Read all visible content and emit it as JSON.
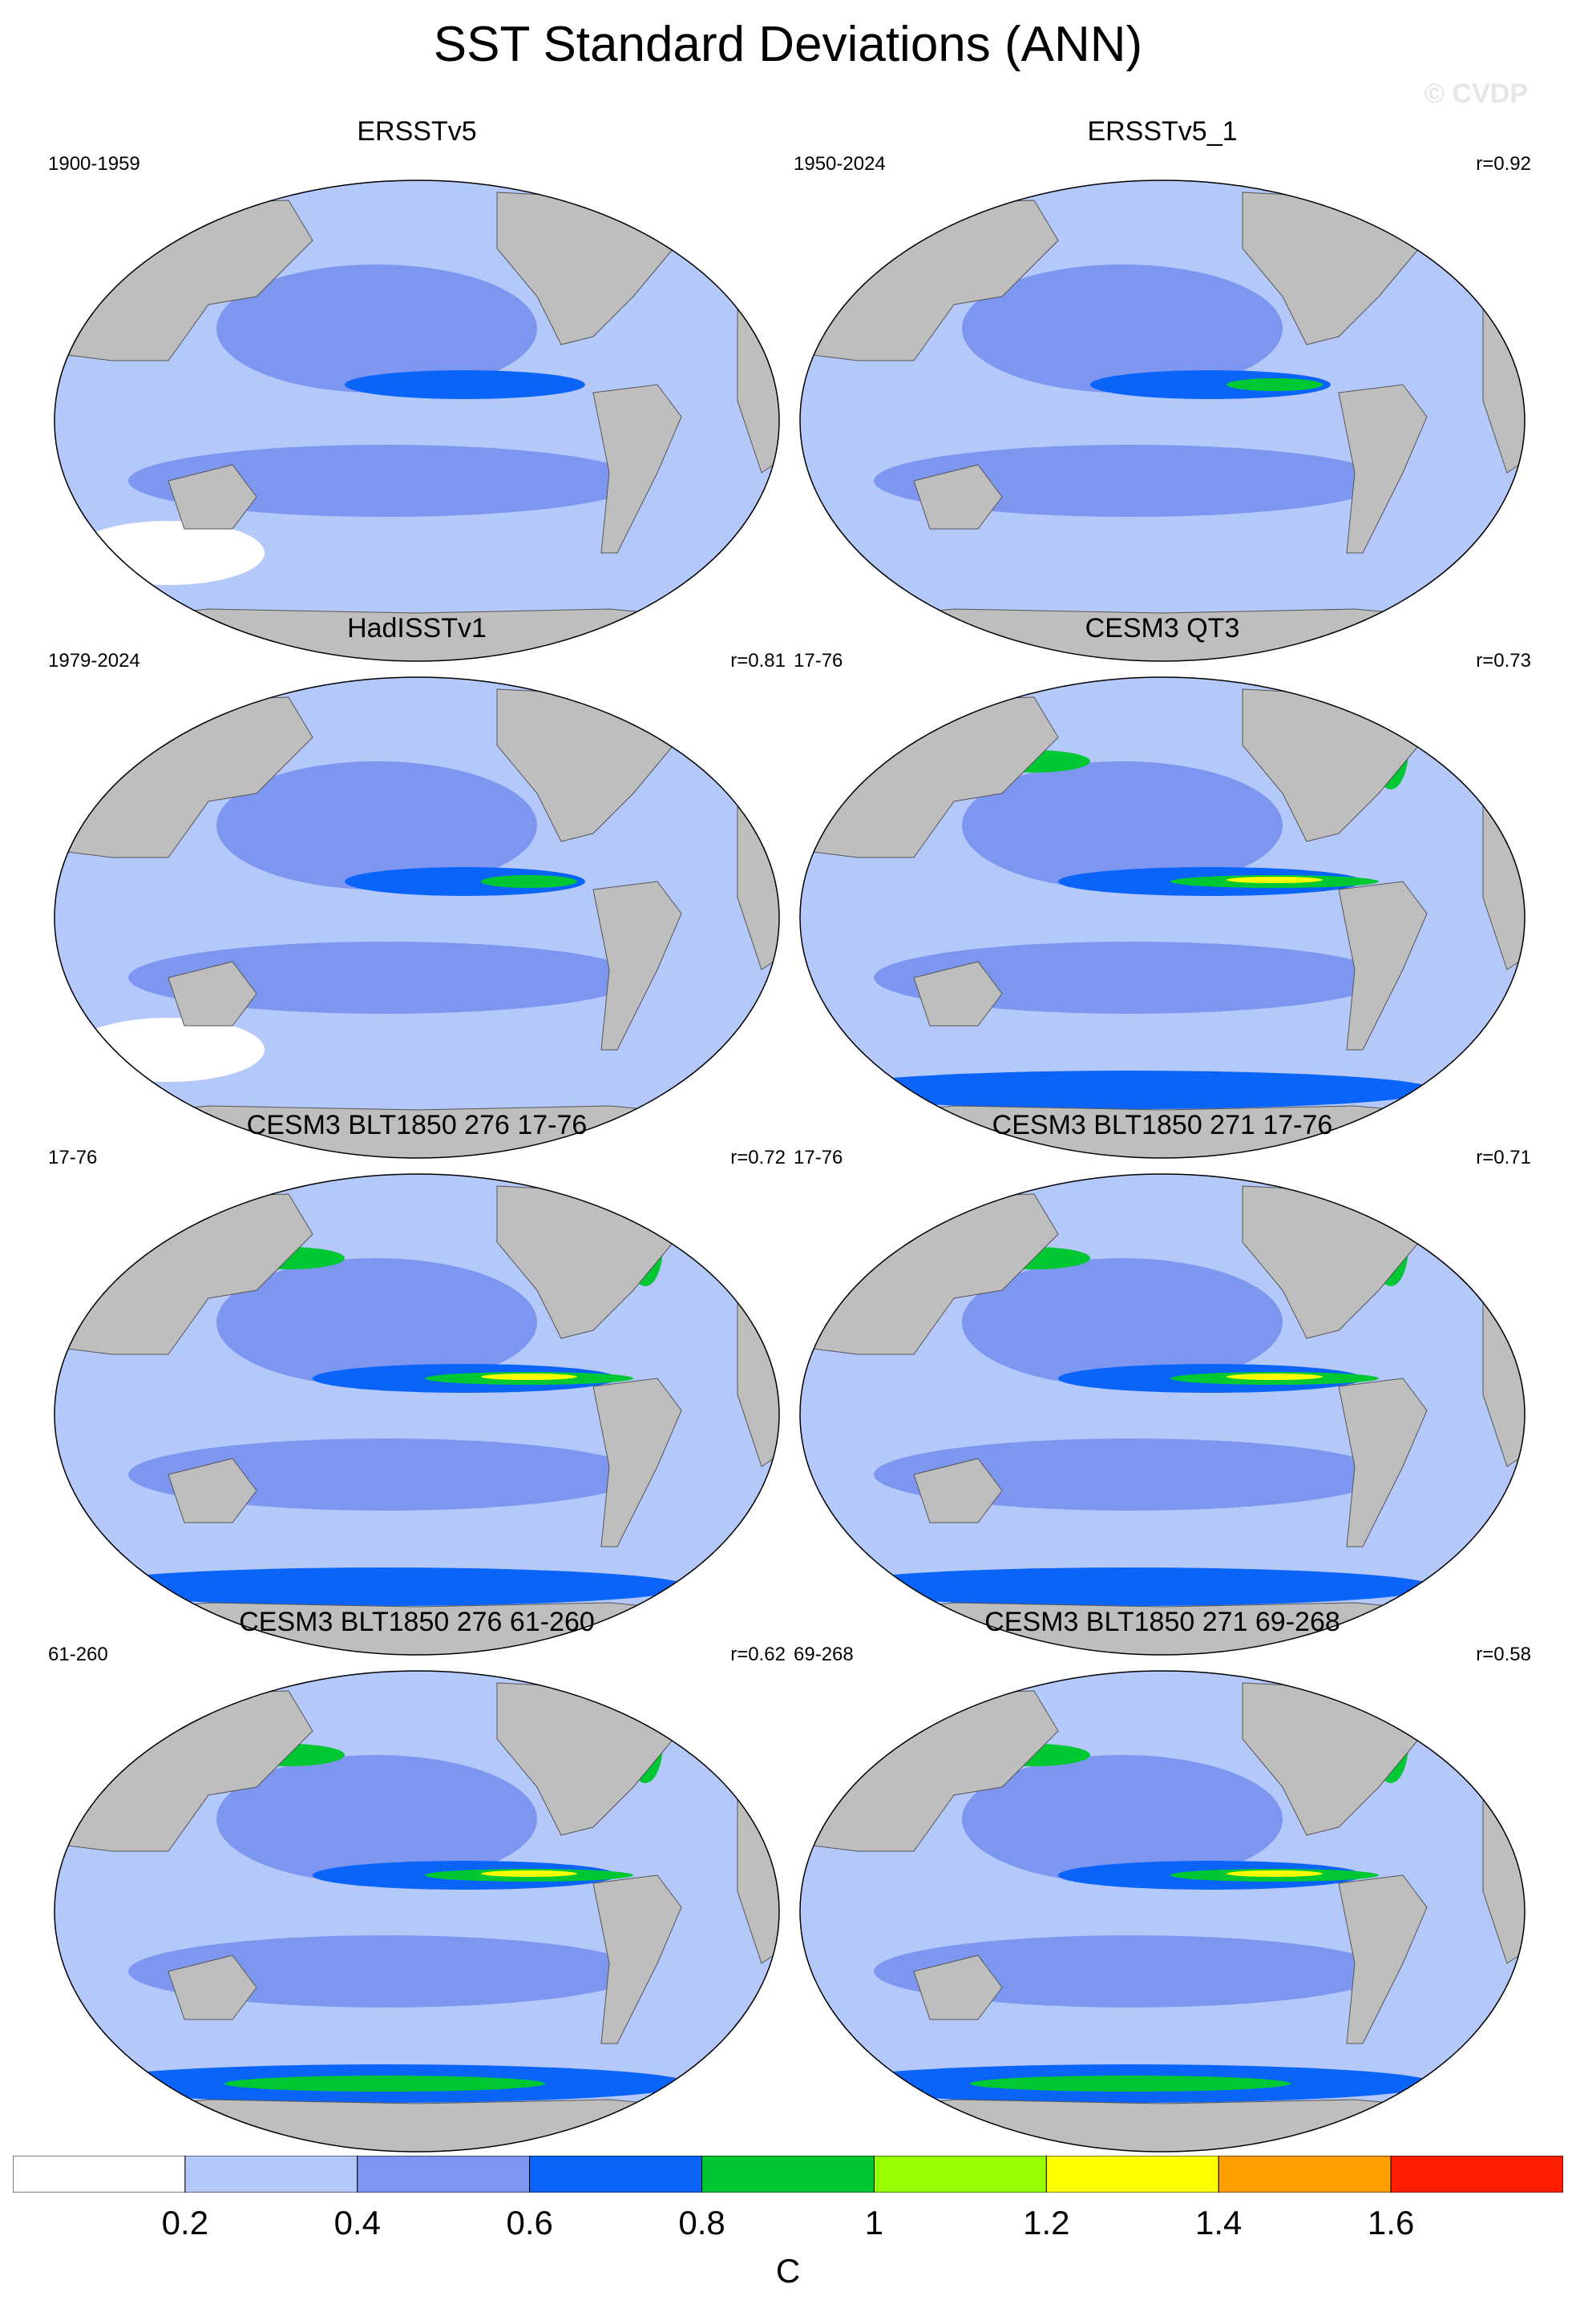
{
  "title": "SST Standard Deviations (ANN)",
  "watermark": "© CVDP",
  "panels": [
    {
      "title": "ERSSTv5",
      "left": "1900-1959",
      "right": ""
    },
    {
      "title": "ERSSTv5_1",
      "left": "1950-2024",
      "right": "r=0.92"
    },
    {
      "title": "HadISSTv1",
      "left": "1979-2024",
      "right": "r=0.81"
    },
    {
      "title": "CESM3 QT3",
      "left": "17-76",
      "right": "r=0.73"
    },
    {
      "title": "CESM3 BLT1850 276 17-76",
      "left": "17-76",
      "right": "r=0.72"
    },
    {
      "title": "CESM3 BLT1850 271 17-76",
      "left": "17-76",
      "right": "r=0.71"
    },
    {
      "title": "CESM3 BLT1850 276 61-260",
      "left": "61-260",
      "right": "r=0.62"
    },
    {
      "title": "CESM3 BLT1850 271 69-268",
      "left": "69-268",
      "right": "r=0.58"
    }
  ],
  "colorbar": {
    "unit": "C",
    "labels": [
      "0.2",
      "0.4",
      "0.6",
      "0.8",
      "1",
      "1.2",
      "1.4",
      "1.6"
    ],
    "colors": [
      "#ffffff",
      "#b4c8fa",
      "#7d96f0",
      "#0a64fa",
      "#00c832",
      "#96ff00",
      "#ffff00",
      "#ffa000",
      "#ff1e00"
    ]
  },
  "map_colors": {
    "land": "#bebebe",
    "ocean_low": "#b4c8fa",
    "ocean_mid": "#7d96f0",
    "ocean_high": "#0a64fa",
    "green": "#00c832",
    "yellow": "#ffff00",
    "orange": "#ffa000",
    "red": "#ff1e00",
    "white": "#ffffff"
  },
  "chart_data": {
    "type": "heatmap",
    "title": "SST Standard Deviations (ANN)",
    "levels": [
      0.2,
      0.4,
      0.6,
      0.8,
      1,
      1.2,
      1.4,
      1.6
    ],
    "unit": "C",
    "panels": [
      "ERSSTv5",
      "ERSSTv5_1",
      "HadISSTv1",
      "CESM3 QT3",
      "CESM3 BLT1850 276 17-76",
      "CESM3 BLT1850 271 17-76",
      "CESM3 BLT1850 276 61-260",
      "CESM3 BLT1850 271 69-268"
    ],
    "pattern_correlations": [
      "",
      "0.92",
      "0.81",
      "0.73",
      "0.72",
      "0.71",
      "0.62",
      "0.58"
    ]
  }
}
